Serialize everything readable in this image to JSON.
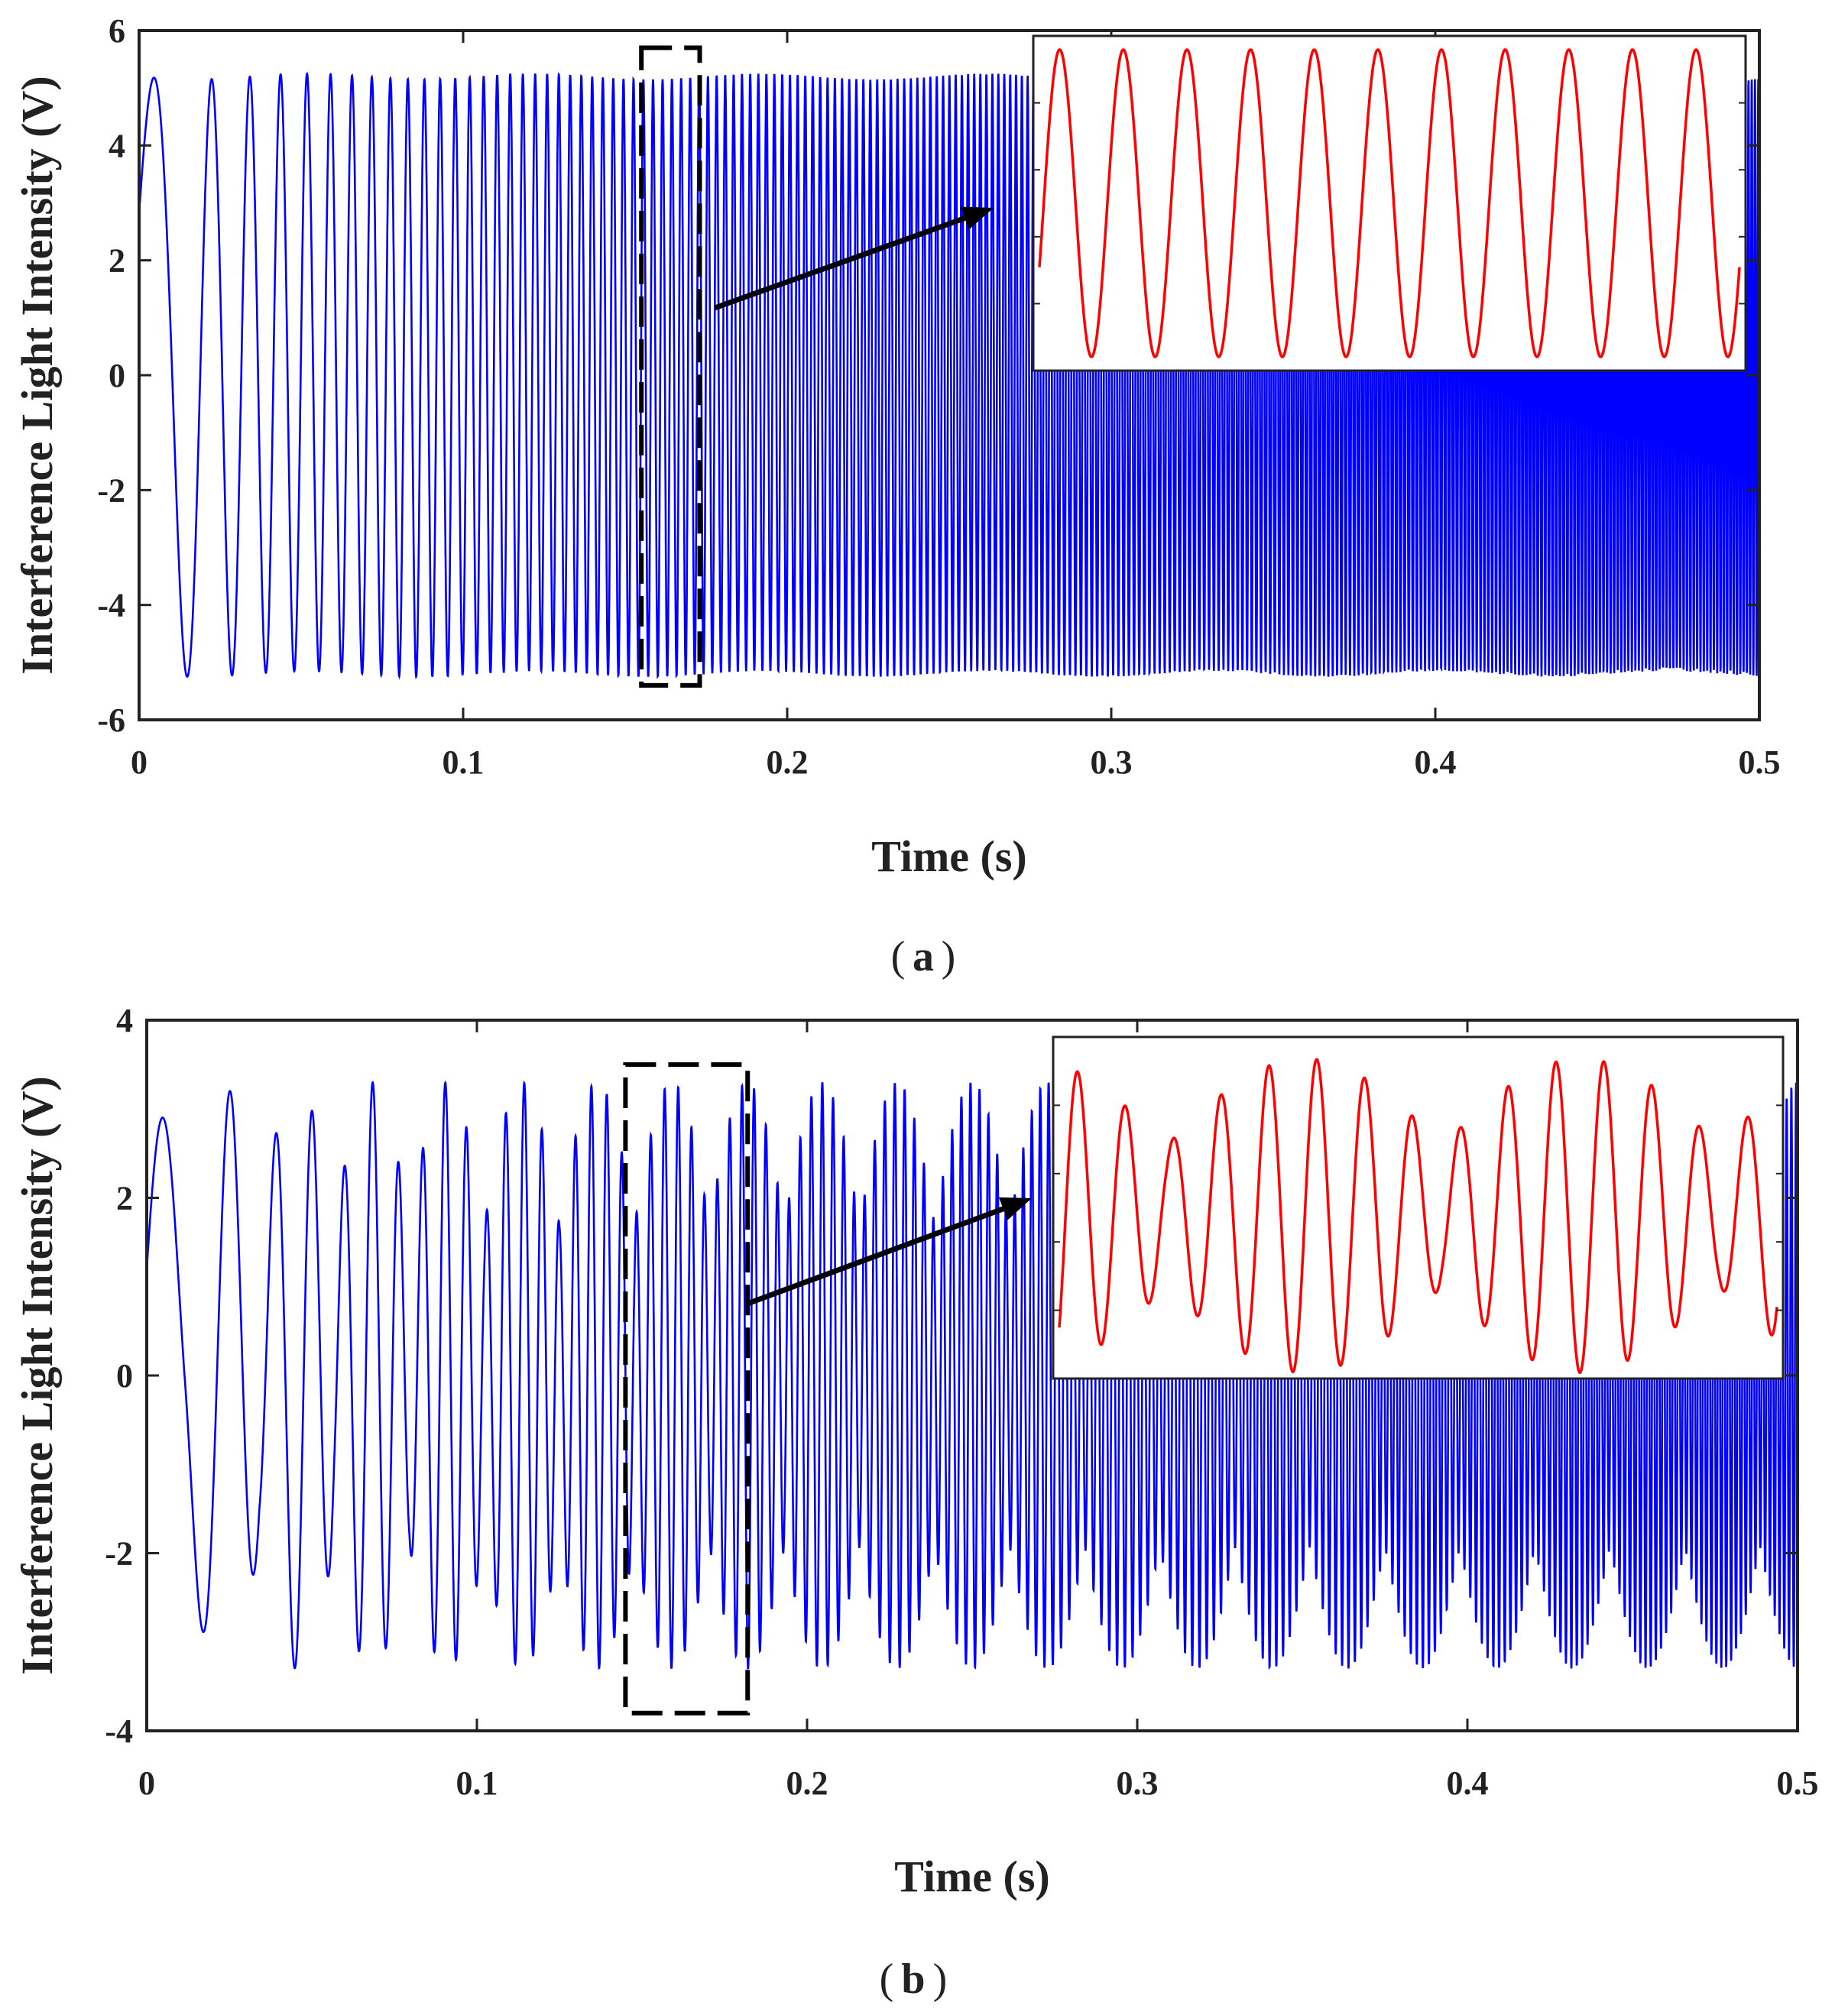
{
  "figure": {
    "panels": [
      "a",
      "b"
    ]
  },
  "chart_data": [
    {
      "type": "line",
      "id": "a",
      "caption_letter": "a",
      "xlabel": "Time (s)",
      "ylabel": "Interference Light Intensity (V)",
      "xlim": [
        0,
        0.5
      ],
      "ylim": [
        -6,
        6
      ],
      "xticks": [
        0,
        0.1,
        0.2,
        0.3,
        0.4,
        0.5
      ],
      "xtick_labels": [
        "0",
        "0.1",
        "0.2",
        "0.3",
        "0.4",
        "0.5"
      ],
      "yticks": [
        -6,
        -4,
        -2,
        0,
        2,
        4,
        6
      ],
      "ytick_labels": [
        "-6",
        "-4",
        "-2",
        "0",
        "2",
        "4",
        "6"
      ],
      "grid": false,
      "series": [
        {
          "name": "interference signal",
          "color": "#0000ff",
          "description": "chirped sinusoid, amplitude ~5.2 V, frequency increasing from ~30 Hz to ~1000 Hz",
          "amplitude": 5.2,
          "freq_start_hz": 30,
          "freq_end_hz": 1000
        }
      ],
      "zoom_box": {
        "x_range": [
          0.155,
          0.173
        ],
        "y_range": [
          -5.4,
          5.7
        ],
        "color": "#000000"
      },
      "inset": {
        "color": "#ff0000",
        "cycles": 11,
        "amplitude": 5.3,
        "description": "zoomed view: constant-amplitude sinusoid"
      }
    },
    {
      "type": "line",
      "id": "b",
      "caption_letter": "b",
      "xlabel": "Time (s)",
      "ylabel": "Interference Light Intensity (V)",
      "xlim": [
        0,
        0.5
      ],
      "ylim": [
        -4,
        4
      ],
      "xticks": [
        0,
        0.1,
        0.2,
        0.3,
        0.4,
        0.5
      ],
      "xtick_labels": [
        "0",
        "0.1",
        "0.2",
        "0.3",
        "0.4",
        "0.5"
      ],
      "yticks": [
        -4,
        -2,
        0,
        2,
        4
      ],
      "ytick_labels": [
        "-4",
        "-2",
        "0",
        "2",
        "4"
      ],
      "grid": false,
      "series": [
        {
          "name": "interference signal",
          "color": "#0000ff",
          "description": "beating sinusoid, amplitude ~3.3 V with periodic modulation, frequency increasing with time",
          "amplitude": 3.3,
          "freq_start_hz": 30,
          "freq_end_hz": 700
        }
      ],
      "zoom_box": {
        "x_range": [
          0.145,
          0.182
        ],
        "y_range": [
          -3.8,
          3.5
        ],
        "color": "#000000"
      },
      "inset": {
        "color": "#ff0000",
        "cycles": 15,
        "amplitude": 3.0,
        "description": "zoomed view: amplitude-modulated (beating) sinusoid"
      }
    }
  ]
}
